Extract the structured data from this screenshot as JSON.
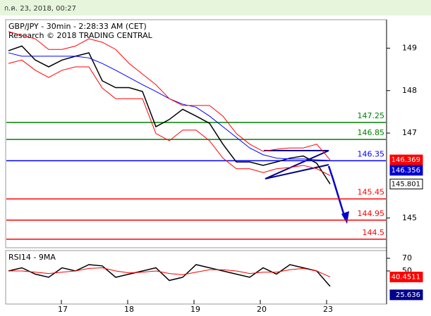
{
  "header": {
    "timestamp": "ก.ค. 23, 2018, 00:27"
  },
  "chart_data": [
    {
      "type": "line",
      "title": "GBP/JPY - 30min - 2:28:33 AM (CET)",
      "subtitle": "Research © 2018 TRADING CENTRAL",
      "x_labels": [
        "17",
        "18",
        "19",
        "20",
        "23"
      ],
      "ylim": [
        144.3,
        149.67
      ],
      "yticks": [
        149,
        148,
        147,
        145
      ],
      "levels": {
        "values": [
          147.25,
          146.85,
          146.35,
          145.45,
          144.95,
          144.5
        ],
        "colors": [
          "#008000",
          "#008000",
          "#0000ff",
          "#ff0000",
          "#ff0000",
          "#ff0000"
        ]
      },
      "series": [
        {
          "color": "#000000",
          "values": [
            148.94,
            149.05,
            148.72,
            148.56,
            148.72,
            148.81,
            148.89,
            148.23,
            148.07,
            148.07,
            147.98,
            147.15,
            147.32,
            147.56,
            147.4,
            147.23,
            146.74,
            146.32,
            146.32,
            146.24,
            146.32,
            146.41,
            146.46,
            146.29,
            145.801
          ]
        },
        {
          "color": "#0000ff",
          "values": [
            148.89,
            148.81,
            148.81,
            148.81,
            148.81,
            148.81,
            148.77,
            148.64,
            148.48,
            148.31,
            148.14,
            147.98,
            147.81,
            147.68,
            147.61,
            147.4,
            147.15,
            146.9,
            146.65,
            146.49,
            146.41,
            146.39,
            146.39,
            146.37,
            146.356
          ]
        },
        {
          "color": "#ff0000",
          "values": [
            149.39,
            149.3,
            149.22,
            148.97,
            148.97,
            149.05,
            149.22,
            149.14,
            148.97,
            148.64,
            148.39,
            148.14,
            147.81,
            147.65,
            147.65,
            147.65,
            147.4,
            146.99,
            146.74,
            146.57,
            146.62,
            146.65,
            146.65,
            146.74,
            146.369
          ]
        },
        {
          "color": "#ff0000",
          "values": [
            148.64,
            148.72,
            148.48,
            148.31,
            148.48,
            148.56,
            148.56,
            148.06,
            147.81,
            147.81,
            147.81,
            146.99,
            146.82,
            147.07,
            147.07,
            146.82,
            146.41,
            146.16,
            146.16,
            146.07,
            146.16,
            146.19,
            146.24,
            146.16,
            146.0
          ]
        }
      ]
    },
    {
      "type": "line",
      "title": "RSI14 - 9MA",
      "ylim": [
        0,
        80
      ],
      "yticks": [
        70,
        50
      ],
      "series": [
        {
          "color": "#000000",
          "values": [
            50,
            55,
            45,
            40,
            55,
            50,
            60,
            58,
            40,
            45,
            50,
            55,
            35,
            40,
            60,
            55,
            50,
            45,
            40,
            55,
            45,
            60,
            55,
            50,
            25.636
          ]
        },
        {
          "color": "#ff0000",
          "values": [
            50,
            50,
            48,
            46,
            48,
            50,
            54,
            55,
            50,
            47,
            48,
            50,
            46,
            44,
            48,
            52,
            52,
            50,
            46,
            48,
            48,
            52,
            54,
            50,
            40.4511
          ]
        }
      ]
    }
  ]
}
